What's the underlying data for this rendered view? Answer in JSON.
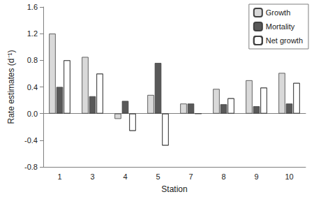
{
  "chart_data": {
    "type": "bar",
    "x_label": "Station",
    "y_label": "Rate estimates (d⁻¹)",
    "categories": [
      "1",
      "3",
      "4",
      "5",
      "7",
      "8",
      "9",
      "10"
    ],
    "series": [
      {
        "name": "Growth",
        "color": "#d9d9d9",
        "values": [
          1.2,
          0.85,
          -0.08,
          0.28,
          0.15,
          0.37,
          0.5,
          0.61
        ]
      },
      {
        "name": "Mortality",
        "color": "#595959",
        "values": [
          0.4,
          0.26,
          0.19,
          0.76,
          0.15,
          0.14,
          0.11,
          0.15
        ]
      },
      {
        "name": "Net growth",
        "color": "#7f7f7f",
        "values": [
          0.8,
          0.6,
          -0.26,
          -0.48,
          0.0,
          0.23,
          0.39,
          0.46
        ]
      }
    ],
    "ylim": [
      -0.8,
      1.6
    ],
    "yticks": [
      -0.8,
      -0.4,
      {
        "value": 0,
        "label": "0.0"
      },
      0.4,
      0.8,
      1.2,
      1.6
    ],
    "grid": false,
    "legend": "top-right"
  }
}
